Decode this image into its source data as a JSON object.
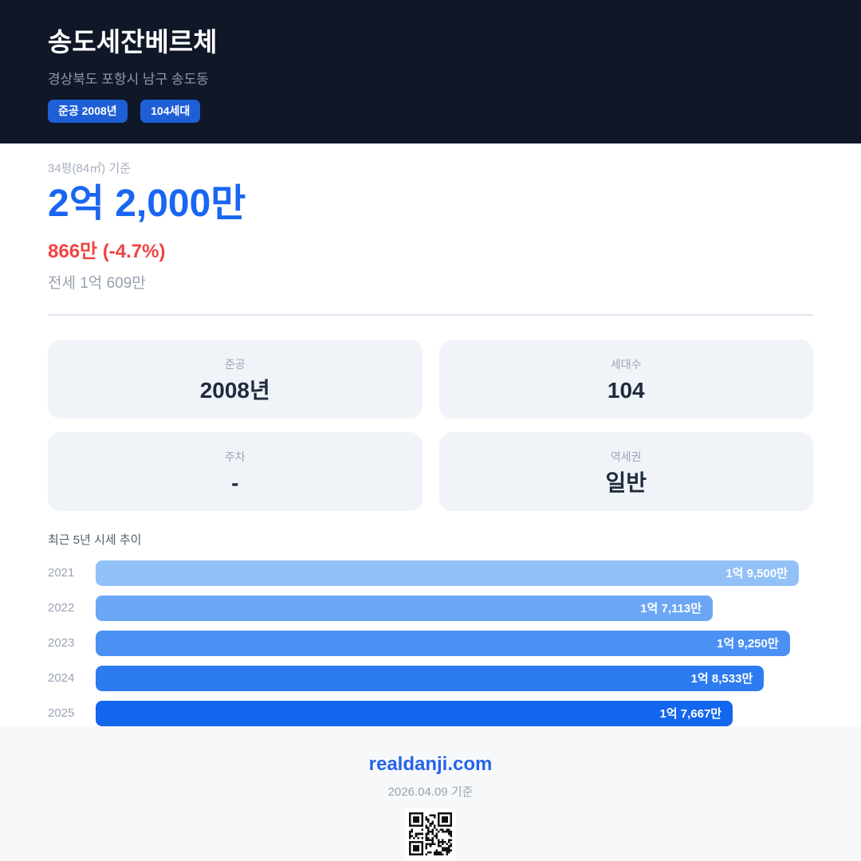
{
  "header": {
    "title": "송도세잔베르체",
    "subtitle": "경상북도 포항시 남구 송도동",
    "badges": [
      {
        "label": "준공 2008년"
      },
      {
        "label": "104세대"
      }
    ]
  },
  "price": {
    "basis": "34평(84㎡) 기준",
    "main": "2억 2,000만",
    "change": "866만 (-4.7%)",
    "jeonse": "전세 1억 609만"
  },
  "info_cards": [
    {
      "label": "준공",
      "value": "2008년"
    },
    {
      "label": "세대수",
      "value": "104"
    },
    {
      "label": "주차",
      "value": "-"
    },
    {
      "label": "역세권",
      "value": "일반"
    }
  ],
  "chart_data": {
    "type": "bar",
    "orientation": "horizontal",
    "title": "최근 5년 시세 추이",
    "categories": [
      "2021",
      "2022",
      "2023",
      "2024",
      "2025"
    ],
    "values": [
      19500,
      17113,
      19250,
      18533,
      17667
    ],
    "value_labels": [
      "1억 9,500만",
      "1억 7,113만",
      "1억 9,250만",
      "1억 8,533만",
      "1억 7,667만"
    ],
    "unit": "만원",
    "xlim": [
      0,
      19890
    ],
    "bar_colors": [
      "#92c1f8",
      "#6ca7f6",
      "#4b90f3",
      "#2d7bf0",
      "#1366ee"
    ],
    "label_position": "inside-right",
    "grid": false,
    "legend": false
  },
  "footer": {
    "site": "realdanji.com",
    "date": "2026.04.09 기준"
  },
  "colors": {
    "header_bg": "#101827",
    "badge_bg": "#1f5fd6",
    "price_blue": "#1a66f2",
    "change_red": "#ef4444",
    "card_bg": "#f0f3f8",
    "footer_bg": "#f7f8fa",
    "brand_blue": "#2563eb"
  }
}
